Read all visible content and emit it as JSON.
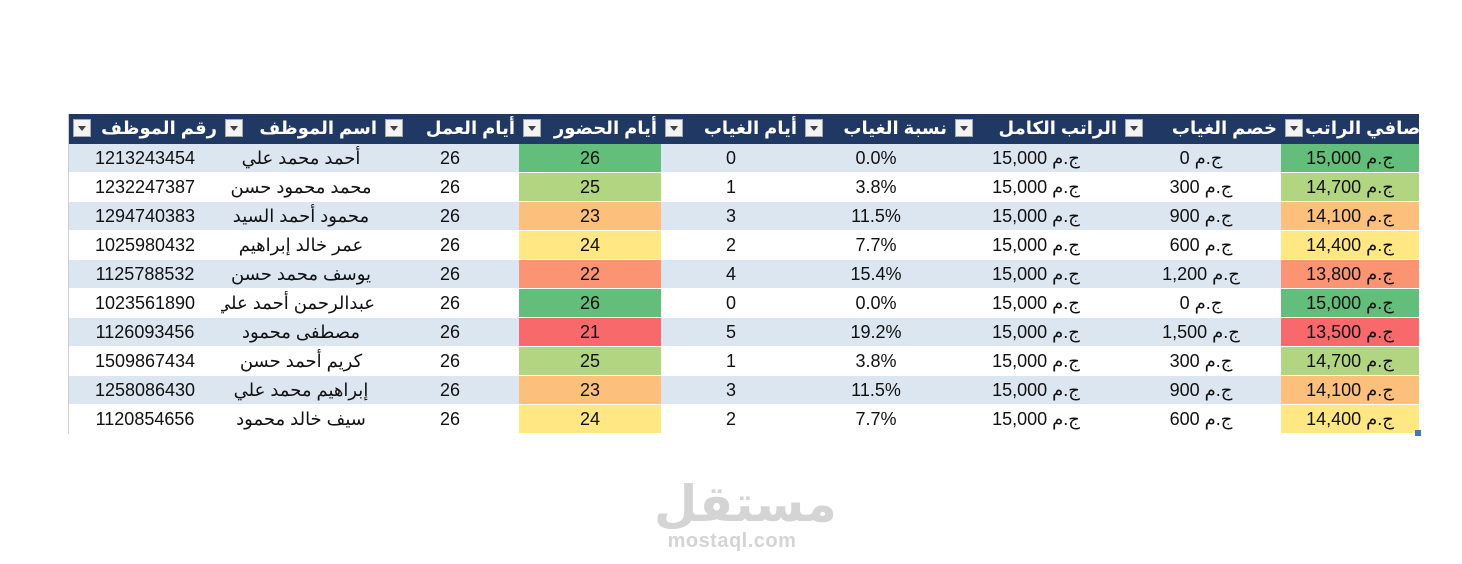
{
  "table": {
    "headers": [
      {
        "key": "net_salary",
        "label": "صافي الراتب"
      },
      {
        "key": "absence_deduction",
        "label": "خصم الغياب"
      },
      {
        "key": "full_salary",
        "label": "الراتب الكامل"
      },
      {
        "key": "absence_rate",
        "label": "نسبة الغياب"
      },
      {
        "key": "absence_days",
        "label": "أيام الغياب"
      },
      {
        "key": "attendance_days",
        "label": "أيام الحضور"
      },
      {
        "key": "work_days",
        "label": "أيام العمل"
      },
      {
        "key": "employee_name",
        "label": "اسم الموظف"
      },
      {
        "key": "employee_id",
        "label": "رقم الموظف"
      }
    ],
    "rows": [
      {
        "net_salary": "ج.م 15,000",
        "net_color": "#63be7b",
        "absence_deduction": "ج.م 0",
        "full_salary": "ج.م 15,000",
        "absence_rate": "0.0%",
        "absence_days": "0",
        "attendance_days": "26",
        "att_color": "#63be7b",
        "work_days": "26",
        "employee_name": "أحمد محمد علي",
        "employee_id": "1213243454"
      },
      {
        "net_salary": "ج.م 14,700",
        "net_color": "#b1d580",
        "absence_deduction": "ج.م 300",
        "full_salary": "ج.م 15,000",
        "absence_rate": "3.8%",
        "absence_days": "1",
        "attendance_days": "25",
        "att_color": "#b1d580",
        "work_days": "26",
        "employee_name": "محمد محمود حسن",
        "employee_id": "1232247387"
      },
      {
        "net_salary": "ج.م 14,100",
        "net_color": "#fdbf7c",
        "absence_deduction": "ج.م 900",
        "full_salary": "ج.م 15,000",
        "absence_rate": "11.5%",
        "absence_days": "3",
        "attendance_days": "23",
        "att_color": "#fdbf7c",
        "work_days": "26",
        "employee_name": "محمود أحمد السيد",
        "employee_id": "1294740383"
      },
      {
        "net_salary": "ج.م 14,400",
        "net_color": "#ffe784",
        "absence_deduction": "ج.م 600",
        "full_salary": "ج.م 15,000",
        "absence_rate": "7.7%",
        "absence_days": "2",
        "attendance_days": "24",
        "att_color": "#ffe784",
        "work_days": "26",
        "employee_name": "عمر خالد إبراهيم",
        "employee_id": "1025980432"
      },
      {
        "net_salary": "ج.م 13,800",
        "net_color": "#fa9473",
        "absence_deduction": "ج.م 1,200",
        "full_salary": "ج.م 15,000",
        "absence_rate": "15.4%",
        "absence_days": "4",
        "attendance_days": "22",
        "att_color": "#fa9473",
        "work_days": "26",
        "employee_name": "يوسف محمد حسن",
        "employee_id": "1125788532"
      },
      {
        "net_salary": "ج.م 15,000",
        "net_color": "#63be7b",
        "absence_deduction": "ج.م 0",
        "full_salary": "ج.م 15,000",
        "absence_rate": "0.0%",
        "absence_days": "0",
        "attendance_days": "26",
        "att_color": "#63be7b",
        "work_days": "26",
        "employee_name": "عبدالرحمن أحمد علي",
        "employee_id": "1023561890"
      },
      {
        "net_salary": "ج.م 13,500",
        "net_color": "#f8696b",
        "absence_deduction": "ج.م 1,500",
        "full_salary": "ج.م 15,000",
        "absence_rate": "19.2%",
        "absence_days": "5",
        "attendance_days": "21",
        "att_color": "#f8696b",
        "work_days": "26",
        "employee_name": "مصطفى محمود",
        "employee_id": "1126093456"
      },
      {
        "net_salary": "ج.م 14,700",
        "net_color": "#b1d580",
        "absence_deduction": "ج.م 300",
        "full_salary": "ج.م 15,000",
        "absence_rate": "3.8%",
        "absence_days": "1",
        "attendance_days": "25",
        "att_color": "#b1d580",
        "work_days": "26",
        "employee_name": "كريم أحمد حسن",
        "employee_id": "1509867434"
      },
      {
        "net_salary": "ج.م 14,100",
        "net_color": "#fdbf7c",
        "absence_deduction": "ج.م 900",
        "full_salary": "ج.م 15,000",
        "absence_rate": "11.5%",
        "absence_days": "3",
        "attendance_days": "23",
        "att_color": "#fdbf7c",
        "work_days": "26",
        "employee_name": "إبراهيم محمد علي",
        "employee_id": "1258086430"
      },
      {
        "net_salary": "ج.م 14,400",
        "net_color": "#ffe784",
        "absence_deduction": "ج.م 600",
        "full_salary": "ج.م 15,000",
        "absence_rate": "7.7%",
        "absence_days": "2",
        "attendance_days": "24",
        "att_color": "#ffe784",
        "work_days": "26",
        "employee_name": "سيف خالد محمود",
        "employee_id": "1120854656"
      }
    ]
  },
  "watermark": {
    "logo_text": "مستقل",
    "url_text": "mostaql.com"
  },
  "colors": {
    "header_bg": "#1f3864",
    "band_row": "#dce6f1"
  }
}
